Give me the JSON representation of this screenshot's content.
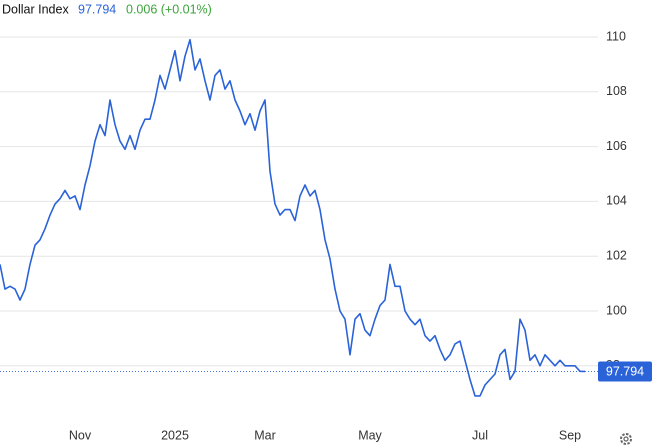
{
  "chart_data": {
    "type": "line",
    "title": "Dollar Index",
    "change_label": "0.006 (+0.01%)",
    "color": "#2a63d8",
    "change_color": "#3aa53a",
    "grid": true,
    "ylim": [
      95,
      111.35
    ],
    "yticks": [
      98,
      100,
      102,
      104,
      106,
      108,
      110
    ],
    "categories": [
      null,
      null,
      null,
      null,
      null,
      null,
      null,
      null,
      null,
      null,
      null,
      null,
      null,
      null,
      null,
      null,
      "Nov",
      null,
      null,
      null,
      null,
      null,
      null,
      null,
      null,
      null,
      null,
      null,
      null,
      null,
      null,
      null,
      null,
      null,
      null,
      "2025",
      null,
      null,
      null,
      null,
      null,
      null,
      null,
      null,
      null,
      null,
      null,
      null,
      null,
      null,
      null,
      null,
      null,
      "Mar",
      null,
      null,
      null,
      null,
      null,
      null,
      null,
      null,
      null,
      null,
      null,
      null,
      null,
      null,
      null,
      null,
      null,
      null,
      null,
      null,
      "May",
      null,
      null,
      null,
      null,
      null,
      null,
      null,
      null,
      null,
      null,
      null,
      null,
      null,
      null,
      null,
      null,
      null,
      null,
      null,
      null,
      null,
      "Jul",
      null,
      null,
      null,
      null,
      null,
      null,
      null,
      null,
      null,
      null,
      null,
      null,
      null,
      null,
      null,
      null,
      null,
      "Sep",
      null,
      null,
      null
    ],
    "values": [
      101.7,
      100.8,
      100.9,
      100.8,
      100.4,
      100.8,
      101.7,
      102.4,
      102.6,
      103.0,
      103.5,
      103.9,
      104.1,
      104.4,
      104.1,
      104.2,
      103.7,
      104.6,
      105.3,
      106.2,
      106.8,
      106.4,
      107.7,
      106.8,
      106.2,
      105.9,
      106.4,
      105.9,
      106.6,
      107.0,
      107.0,
      107.7,
      108.6,
      108.1,
      108.8,
      109.5,
      108.4,
      109.3,
      109.9,
      108.8,
      109.2,
      108.4,
      107.7,
      108.6,
      108.8,
      108.1,
      108.4,
      107.7,
      107.3,
      106.8,
      107.2,
      106.6,
      107.3,
      107.7,
      105.1,
      103.9,
      103.5,
      103.7,
      103.7,
      103.3,
      104.2,
      104.6,
      104.2,
      104.4,
      103.7,
      102.6,
      101.9,
      100.8,
      100.0,
      99.7,
      98.4,
      99.7,
      99.9,
      99.3,
      99.1,
      99.7,
      100.2,
      100.4,
      101.7,
      100.9,
      100.9,
      100.0,
      99.7,
      99.5,
      99.7,
      99.1,
      98.9,
      99.1,
      98.6,
      98.2,
      98.4,
      98.8,
      98.9,
      98.2,
      97.5,
      96.9,
      96.9,
      97.3,
      97.5,
      97.7,
      98.4,
      98.6,
      97.5,
      97.8,
      99.7,
      99.3,
      98.2,
      98.4,
      98.0,
      98.4,
      98.2,
      98.0,
      98.2,
      98.0,
      98.0,
      98.0,
      97.8,
      97.794
    ]
  }
}
